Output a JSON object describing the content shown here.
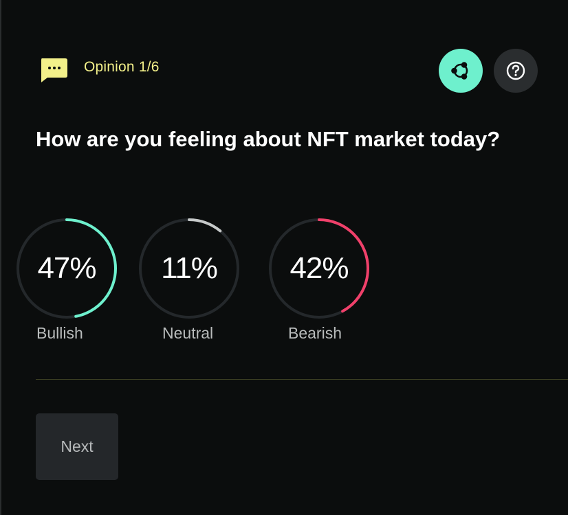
{
  "header": {
    "label": "Opinion 1/6",
    "badge_icon": "chat-bubble-icon",
    "badge_color": "#f3f08a"
  },
  "actions": {
    "share_icon": "share-nodes-icon",
    "share_color": "#6ef0cd",
    "help_icon": "question-circle-icon"
  },
  "question": "How are you feeling about NFT market today?",
  "results": [
    {
      "label": "Bullish",
      "percent_text": "47%",
      "percent": 47,
      "color": "#6ef0cd"
    },
    {
      "label": "Neutral",
      "percent_text": "11%",
      "percent": 11,
      "color": "#c6c9c9"
    },
    {
      "label": "Bearish",
      "percent_text": "42%",
      "percent": 42,
      "color": "#f0406a"
    }
  ],
  "next_label": "Next"
}
